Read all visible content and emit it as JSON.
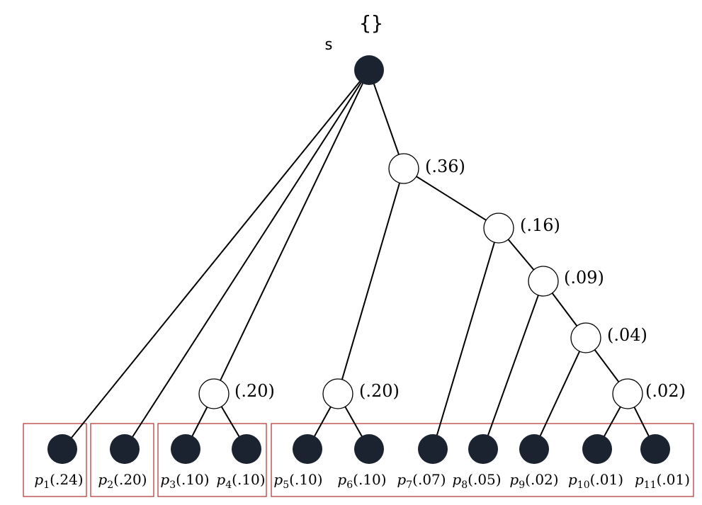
{
  "root": {
    "name": "s",
    "set_label": "{}"
  },
  "internal_nodes": [
    {
      "id": "n36",
      "label": "(.36)"
    },
    {
      "id": "n16",
      "label": "(.16)"
    },
    {
      "id": "n09",
      "label": "(.09)"
    },
    {
      "id": "n04",
      "label": "(.04)"
    },
    {
      "id": "n02",
      "label": "(.02)"
    },
    {
      "id": "n20a",
      "label": "(.20)"
    },
    {
      "id": "n20b",
      "label": "(.20)"
    }
  ],
  "leaves": [
    {
      "id": "p1",
      "name": "p",
      "sub": "1",
      "prob": "(.24)"
    },
    {
      "id": "p2",
      "name": "p",
      "sub": "2",
      "prob": "(.20)"
    },
    {
      "id": "p3",
      "name": "p",
      "sub": "3",
      "prob": "(.10)"
    },
    {
      "id": "p4",
      "name": "p",
      "sub": "4",
      "prob": "(.10)"
    },
    {
      "id": "p5",
      "name": "p",
      "sub": "5",
      "prob": "(.10)"
    },
    {
      "id": "p6",
      "name": "p",
      "sub": "6",
      "prob": "(.10)"
    },
    {
      "id": "p7",
      "name": "p",
      "sub": "7",
      "prob": "(.07)"
    },
    {
      "id": "p8",
      "name": "p",
      "sub": "8",
      "prob": "(.05)"
    },
    {
      "id": "p9",
      "name": "p",
      "sub": "9",
      "prob": "(.02)"
    },
    {
      "id": "p10",
      "name": "p",
      "sub": "10",
      "prob": "(.01)"
    },
    {
      "id": "p11",
      "name": "p",
      "sub": "11",
      "prob": "(.01)"
    }
  ],
  "colors": {
    "node_fill": "#1c2330",
    "group_border": "#b03030",
    "edge": "#000000"
  }
}
